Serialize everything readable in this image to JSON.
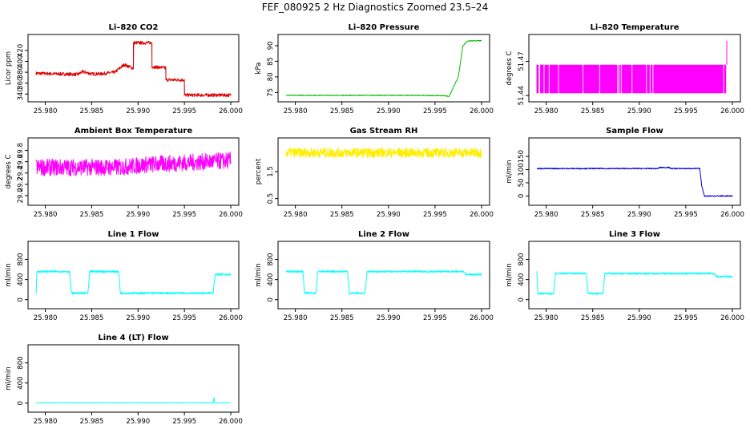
{
  "title": "FEF_080925  2 Hz Diagnostics Zoomed 23.5–24",
  "chart_data": [
    {
      "type": "line",
      "title": "Li–820 CO2",
      "ylabel": "Licor ppm",
      "color": "#dd0000",
      "xlim": [
        25.979,
        26.0
      ],
      "xticks": [
        "25.980",
        "25.985",
        "25.990",
        "25.995",
        "26.000"
      ],
      "ylim": [
        333,
        442
      ],
      "yticks": [
        340,
        360,
        380,
        400,
        420
      ],
      "x": [
        25.979,
        25.9835,
        25.984,
        25.985,
        25.986,
        25.9875,
        25.988,
        25.9885,
        25.9895,
        25.9895,
        25.9915,
        25.9915,
        25.993,
        25.993,
        25.995,
        25.995,
        26.0
      ],
      "y": [
        378,
        376,
        381,
        377,
        377,
        380,
        387,
        394,
        387,
        434,
        434,
        390,
        388,
        366,
        366,
        338,
        338
      ],
      "noise": 3
    },
    {
      "type": "line",
      "title": "Li–820 Pressure",
      "ylabel": "kPa",
      "color": "#00bb00",
      "xlim": [
        25.979,
        26.0
      ],
      "xticks": [
        "25.980",
        "25.985",
        "25.990",
        "25.995",
        "26.000"
      ],
      "ylim": [
        73.3,
        92.3
      ],
      "yticks": [
        75,
        80,
        85,
        90
      ],
      "x": [
        25.979,
        25.9925,
        25.996,
        25.9965,
        25.9975,
        25.998,
        25.9985,
        26.0
      ],
      "y": [
        74.1,
        74.1,
        74.0,
        73.7,
        80,
        90,
        91.5,
        91.6
      ],
      "noise": 0.12
    },
    {
      "type": "line",
      "title": "Li–820 Temperature",
      "ylabel": "degrees C",
      "color": "#ff00ff",
      "xlim": [
        25.979,
        26.0
      ],
      "xticks": [
        "25.980",
        "25.985",
        "25.990",
        "25.995",
        "26.000"
      ],
      "ylim": [
        51.438,
        51.49
      ],
      "yticks": [
        51.44,
        51.47
      ],
      "band": [
        51.442,
        51.467
      ],
      "spike": {
        "x": 25.9994,
        "y": 51.488
      },
      "noise": 0
    },
    {
      "type": "line",
      "title": "Ambient Box Temperature",
      "ylabel": "degrees C",
      "color": "#ff00ff",
      "xlim": [
        25.979,
        26.0
      ],
      "xticks": [
        "25.980",
        "25.985",
        "25.990",
        "25.995",
        "26.000"
      ],
      "ylim": [
        28.9,
        29.95
      ],
      "yticks": [
        "29.0",
        "29.2",
        "29.4",
        "29.6",
        "29.8"
      ],
      "x": [
        25.979,
        25.988,
        25.991,
        26.0
      ],
      "y": [
        29.5,
        29.5,
        29.55,
        29.62
      ],
      "noise": 0.15
    },
    {
      "type": "line",
      "title": "Gas Stream RH",
      "ylabel": "percent",
      "color": "#ffee00",
      "xlim": [
        25.979,
        26.0
      ],
      "xticks": [
        "25.980",
        "25.985",
        "25.990",
        "25.995",
        "26.000"
      ],
      "ylim": [
        0.4,
        2.6
      ],
      "yticks": [
        "0.5",
        "1.5"
      ],
      "x": [
        25.979,
        26.0
      ],
      "y": [
        2.2,
        2.2
      ],
      "noise": 0.18
    },
    {
      "type": "line",
      "title": "Sample Flow",
      "ylabel": "ml/min",
      "color": "#0000dd",
      "xlim": [
        25.979,
        26.0
      ],
      "xticks": [
        "25.980",
        "25.985",
        "25.990",
        "25.995",
        "26.000"
      ],
      "ylim": [
        -20,
        205
      ],
      "yticks": [
        0,
        50,
        100,
        150
      ],
      "x": [
        25.979,
        25.992,
        25.9922,
        25.9932,
        25.9934,
        25.9965,
        25.9967,
        25.997,
        26.0
      ],
      "y": [
        104,
        104,
        108,
        108,
        104,
        104,
        40,
        0,
        0
      ],
      "noise": 2
    },
    {
      "type": "line",
      "title": "Line 1 Flow",
      "ylabel": "ml/min",
      "color": "#00ffff",
      "xlim": [
        25.979,
        26.0
      ],
      "xticks": [
        "25.980",
        "25.985",
        "25.990",
        "25.995",
        "26.000"
      ],
      "ylim": [
        -100,
        1080
      ],
      "yticks": [
        0,
        400,
        800
      ],
      "x": [
        25.979,
        25.9791,
        25.9826,
        25.9828,
        25.9846,
        25.9848,
        25.9879,
        25.9881,
        25.9981,
        25.9983,
        26.0
      ],
      "y": [
        130,
        560,
        560,
        130,
        130,
        560,
        560,
        130,
        130,
        500,
        500
      ],
      "noise": 20
    },
    {
      "type": "line",
      "title": "Line 2 Flow",
      "ylabel": "ml/min",
      "color": "#00ffff",
      "xlim": [
        25.979,
        26.0
      ],
      "xticks": [
        "25.980",
        "25.985",
        "25.990",
        "25.995",
        "26.000"
      ],
      "ylim": [
        -100,
        1080
      ],
      "yticks": [
        0,
        400,
        800
      ],
      "x": [
        25.979,
        25.9808,
        25.981,
        25.9822,
        25.9824,
        25.9856,
        25.9858,
        25.9875,
        25.9877,
        25.9981,
        25.9983,
        26.0
      ],
      "y": [
        560,
        560,
        130,
        130,
        560,
        560,
        130,
        130,
        560,
        560,
        500,
        500
      ],
      "noise": 18
    },
    {
      "type": "line",
      "title": "Line 3 Flow",
      "ylabel": "ml/min",
      "color": "#00ffff",
      "xlim": [
        25.979,
        26.0
      ],
      "xticks": [
        "25.980",
        "25.985",
        "25.990",
        "25.995",
        "26.000"
      ],
      "ylim": [
        -100,
        1080
      ],
      "yticks": [
        0,
        400,
        800
      ],
      "x": [
        25.979,
        25.9791,
        25.9808,
        25.981,
        25.9843,
        25.9845,
        25.9861,
        25.9863,
        25.9981,
        25.9983,
        26.0
      ],
      "y": [
        560,
        120,
        120,
        520,
        520,
        120,
        120,
        520,
        520,
        460,
        460
      ],
      "noise": 18
    },
    {
      "type": "line",
      "title": "Line 4 (LT) Flow",
      "ylabel": "ml/min",
      "color": "#00ffff",
      "xlim": [
        25.979,
        26.0
      ],
      "xticks": [
        "25.980",
        "25.985",
        "25.990",
        "25.995",
        "26.000"
      ],
      "ylim": [
        -100,
        1080
      ],
      "yticks": [
        0,
        400,
        800
      ],
      "x": [
        25.979,
        25.9981,
        25.9982,
        25.9983,
        26.0
      ],
      "y": [
        5,
        5,
        110,
        5,
        5
      ],
      "noise": 2
    }
  ]
}
